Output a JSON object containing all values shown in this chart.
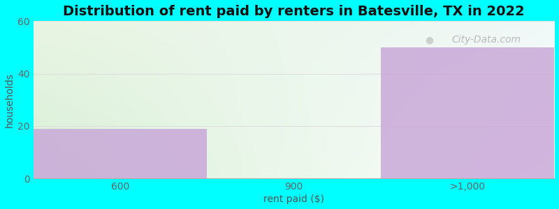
{
  "title": "Distribution of rent paid by renters in Batesville, TX in 2022",
  "categories": [
    "600",
    "900",
    ">1,000"
  ],
  "values": [
    19,
    0,
    50
  ],
  "bar_color": "#c9a8d8",
  "bar_alpha": 0.85,
  "xlabel": "rent paid ($)",
  "ylabel": "households",
  "ylim": [
    0,
    60
  ],
  "yticks": [
    0,
    20,
    40,
    60
  ],
  "background_color": "#00ffff",
  "plot_bg_color_topleft": "#e8f5e2",
  "plot_bg_color_topright": "#f0f8f8",
  "plot_bg_color_bottomleft": "#d8f0d8",
  "plot_bg_color_bottomright": "#ffffff",
  "title_fontsize": 14,
  "axis_label_fontsize": 10,
  "tick_fontsize": 10,
  "watermark_text": "City-Data.com",
  "grid_color": "#cccccc",
  "figsize": [
    8.0,
    3.0
  ],
  "dpi": 100
}
